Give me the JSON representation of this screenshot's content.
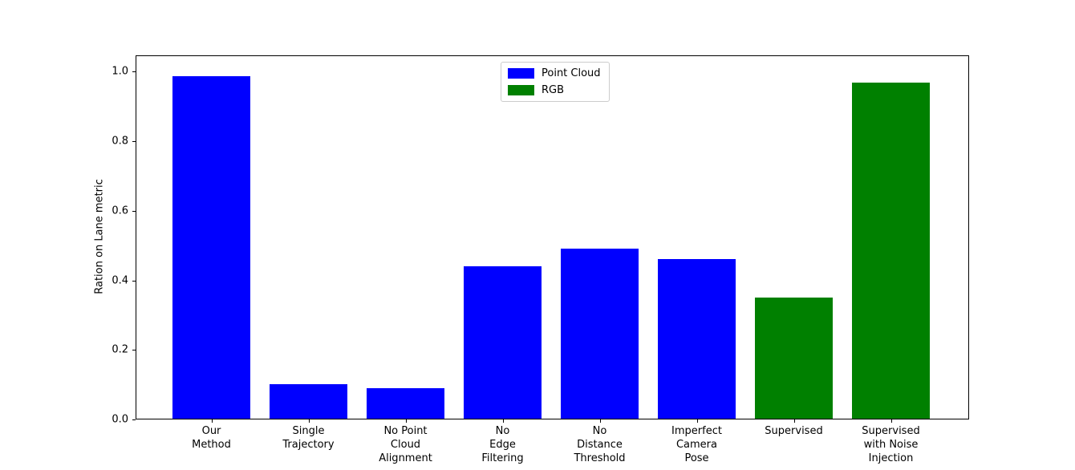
{
  "figure": {
    "background": "#ffffff"
  },
  "chart_data": {
    "type": "bar",
    "title": "",
    "xlabel": "",
    "ylabel": "Ration on Lane metric",
    "ylim": [
      0,
      1.047
    ],
    "yticks": [
      "0.0",
      "0.2",
      "0.4",
      "0.6",
      "0.8",
      "1.0"
    ],
    "grid": false,
    "legend_position": "upper center",
    "legend": {
      "entries": [
        {
          "label": "Point Cloud",
          "color": "#0000ff"
        },
        {
          "label": "RGB",
          "color": "#008000"
        }
      ]
    },
    "categories": [
      "Our\nMethod",
      "Single\nTrajectory",
      "No Point\nCloud\nAlignment",
      "No\nEdge\nFiltering",
      "No\nDistance\nThreshold",
      "Imperfect\nCamera\nPose",
      "Supervised",
      "Supervised\nwith Noise\nInjection"
    ],
    "series": [
      {
        "name": "Point Cloud",
        "color": "#0000ff",
        "values": [
          0.99,
          0.1,
          0.087,
          0.44,
          0.49,
          0.46,
          null,
          null
        ]
      },
      {
        "name": "RGB",
        "color": "#008000",
        "values": [
          null,
          null,
          null,
          null,
          null,
          null,
          0.35,
          0.97
        ]
      }
    ]
  }
}
